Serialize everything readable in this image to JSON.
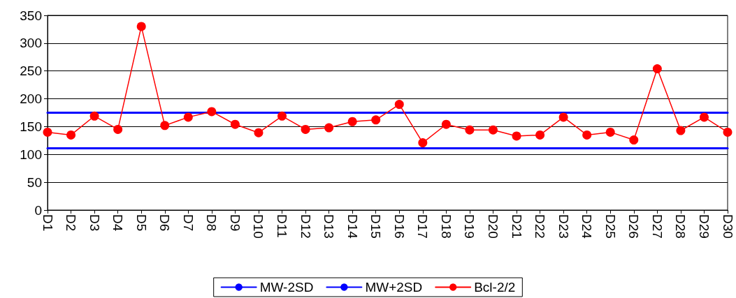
{
  "chart_data": {
    "type": "line",
    "categories": [
      "D1",
      "D2",
      "D3",
      "D4",
      "D5",
      "D6",
      "D7",
      "D8",
      "D9",
      "D10",
      "D11",
      "D12",
      "D13",
      "D14",
      "D15",
      "D16",
      "D17",
      "D18",
      "D19",
      "D20",
      "D21",
      "D22",
      "D23",
      "D24",
      "D25",
      "D26",
      "D27",
      "D28",
      "D29",
      "D30"
    ],
    "series": [
      {
        "name": "MW-2SD",
        "color": "#0000ff",
        "marker": "none",
        "values": [
          111,
          111,
          111,
          111,
          111,
          111,
          111,
          111,
          111,
          111,
          111,
          111,
          111,
          111,
          111,
          111,
          111,
          111,
          111,
          111,
          111,
          111,
          111,
          111,
          111,
          111,
          111,
          111,
          111,
          111
        ]
      },
      {
        "name": "MW+2SD",
        "color": "#0000ff",
        "marker": "none",
        "values": [
          175,
          175,
          175,
          175,
          175,
          175,
          175,
          175,
          175,
          175,
          175,
          175,
          175,
          175,
          175,
          175,
          175,
          175,
          175,
          175,
          175,
          175,
          175,
          175,
          175,
          175,
          175,
          175,
          175,
          175
        ]
      },
      {
        "name": "Bcl-2/2",
        "color": "#ff0000",
        "marker": "circle",
        "values": [
          140,
          135,
          169,
          145,
          330,
          152,
          167,
          177,
          154,
          139,
          169,
          145,
          148,
          159,
          162,
          190,
          121,
          154,
          144,
          144,
          133,
          135,
          167,
          135,
          140,
          126,
          254,
          143,
          167,
          140
        ]
      }
    ],
    "ylim": [
      0,
      350
    ],
    "yticks": [
      0,
      50,
      100,
      150,
      200,
      250,
      300,
      350
    ],
    "grid": "y",
    "legend": "bottom",
    "line_style": "solid"
  }
}
